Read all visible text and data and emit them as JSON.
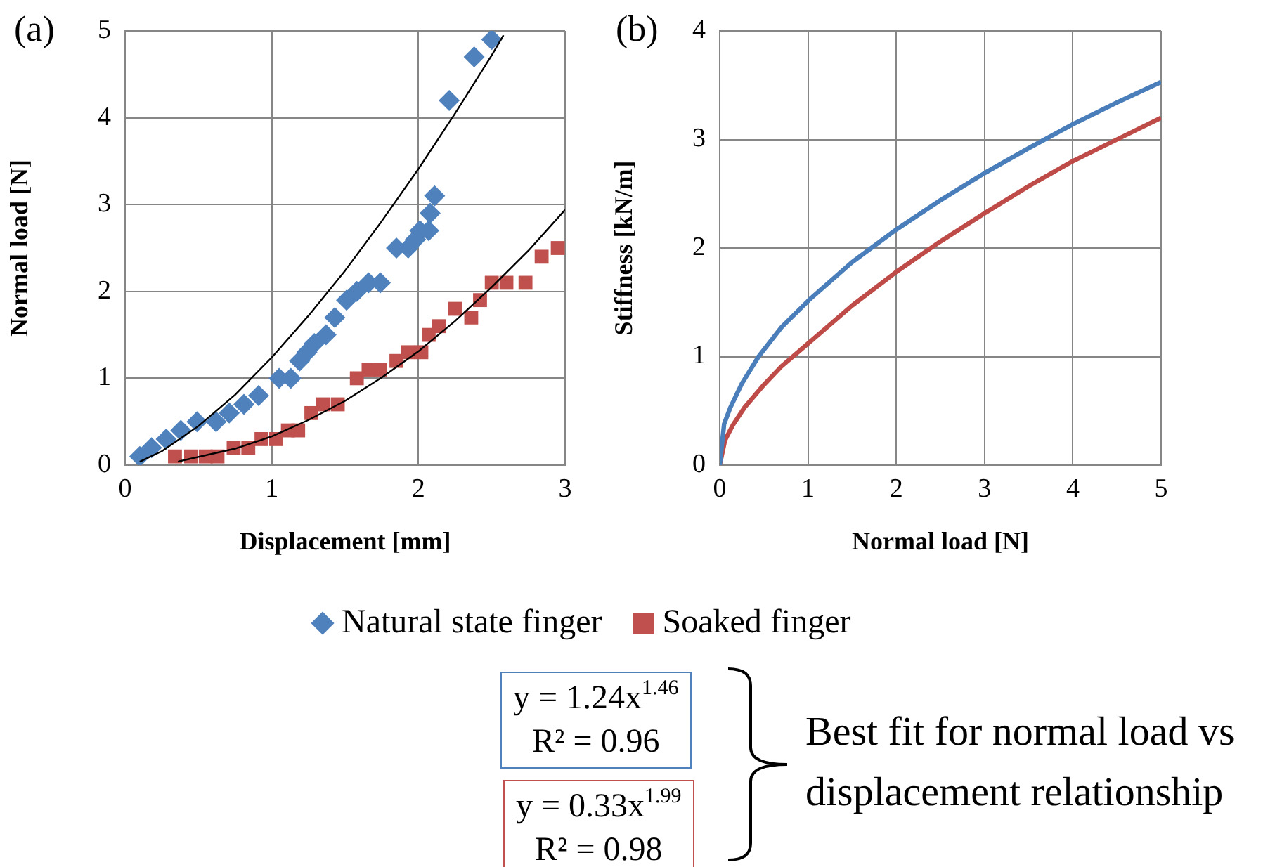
{
  "chart_data": [
    {
      "type": "scatter",
      "title": "(a)",
      "xlabel": "Displacement [mm]",
      "ylabel": "Normal load [N]",
      "xlim": [
        0,
        3
      ],
      "xticks": [
        0,
        1,
        2,
        3
      ],
      "ylim": [
        0,
        5
      ],
      "yticks": [
        0,
        1,
        2,
        3,
        4,
        5
      ],
      "grid": true,
      "legend": "bottom",
      "annotations": [
        "y = 1.24x$^{1.46}$",
        "R² = 0.96",
        "y = 0.33x$^{1.99}$",
        "R² = 0.98",
        "Best fit for normal load vs displacement relationship"
      ],
      "series": [
        {
          "name": "Natural state finger",
          "color": "#4f81bd",
          "marker": "diamond",
          "x": [
            0.1,
            0.18,
            0.28,
            0.38,
            0.49,
            0.62,
            0.71,
            0.81,
            0.91,
            1.05,
            1.13,
            1.19,
            1.24,
            1.29,
            1.37,
            1.43,
            1.51,
            1.58,
            1.66,
            1.74,
            1.85,
            1.93,
            1.98,
            2.01,
            2.07,
            2.08,
            2.11,
            2.21,
            2.38,
            2.5
          ],
          "values": [
            0.1,
            0.2,
            0.3,
            0.4,
            0.5,
            0.5,
            0.6,
            0.7,
            0.8,
            1.0,
            1.0,
            1.2,
            1.3,
            1.4,
            1.5,
            1.7,
            1.9,
            2.0,
            2.1,
            2.1,
            2.5,
            2.5,
            2.6,
            2.7,
            2.7,
            2.9,
            3.1,
            4.2,
            4.7,
            4.9
          ]
        },
        {
          "name": "Soaked finger",
          "color": "#c0504d",
          "marker": "square",
          "x": [
            0.34,
            0.45,
            0.55,
            0.63,
            0.74,
            0.84,
            0.93,
            1.03,
            1.11,
            1.18,
            1.27,
            1.35,
            1.45,
            1.58,
            1.66,
            1.74,
            1.85,
            1.93,
            2.02,
            2.07,
            2.14,
            2.25,
            2.36,
            2.42,
            2.5,
            2.6,
            2.73,
            2.84,
            2.95
          ],
          "values": [
            0.1,
            0.1,
            0.1,
            0.1,
            0.2,
            0.2,
            0.3,
            0.3,
            0.4,
            0.4,
            0.6,
            0.7,
            0.7,
            1.0,
            1.1,
            1.1,
            1.2,
            1.3,
            1.3,
            1.5,
            1.6,
            1.8,
            1.7,
            1.9,
            2.1,
            2.1,
            2.1,
            2.4,
            2.5
          ]
        },
        {
          "type": "line",
          "color": "#000000",
          "marker": "none",
          "x": [
            0.1,
            0.25,
            0.5,
            0.75,
            1,
            1.25,
            1.5,
            1.75,
            2,
            2.25,
            2.5,
            2.58
          ],
          "values": [
            0.04,
            0.16,
            0.45,
            0.81,
            1.24,
            1.72,
            2.24,
            2.81,
            3.41,
            4.05,
            4.72,
            4.95
          ]
        },
        {
          "type": "line",
          "color": "#000000",
          "marker": "none",
          "x": [
            0.36,
            0.75,
            1,
            1.25,
            1.5,
            1.75,
            2,
            2.25,
            2.5,
            2.75,
            3
          ],
          "values": [
            0.04,
            0.19,
            0.33,
            0.52,
            0.74,
            1.01,
            1.31,
            1.66,
            2.05,
            2.47,
            2.94
          ]
        }
      ]
    },
    {
      "type": "line",
      "title": "(b)",
      "xlabel": "Normal load [N]",
      "ylabel": "Stiffness [kN/m]",
      "xlim": [
        0,
        5
      ],
      "xticks": [
        0,
        1,
        2,
        3,
        4,
        5
      ],
      "ylim": [
        0,
        4
      ],
      "yticks": [
        0,
        1,
        2,
        3,
        4
      ],
      "grid": true,
      "marker": "none",
      "series": [
        {
          "color": "#4a7ebb",
          "x": [
            0,
            0.05,
            0.12,
            0.25,
            0.44,
            0.7,
            1.01,
            1.5,
            2,
            2.5,
            3,
            3.5,
            4,
            4.5,
            5
          ],
          "values": [
            0,
            0.38,
            0.53,
            0.75,
            1.0,
            1.27,
            1.52,
            1.87,
            2.17,
            2.44,
            2.69,
            2.92,
            3.14,
            3.34,
            3.53
          ]
        },
        {
          "color": "#be4b48",
          "x": [
            0,
            0.06,
            0.15,
            0.28,
            0.5,
            0.7,
            1,
            1.5,
            2,
            2.5,
            3,
            3.5,
            4,
            4.5,
            5
          ],
          "values": [
            0,
            0.23,
            0.37,
            0.53,
            0.74,
            0.91,
            1.12,
            1.47,
            1.78,
            2.06,
            2.32,
            2.57,
            2.8,
            3.0,
            3.2
          ]
        }
      ]
    }
  ]
}
